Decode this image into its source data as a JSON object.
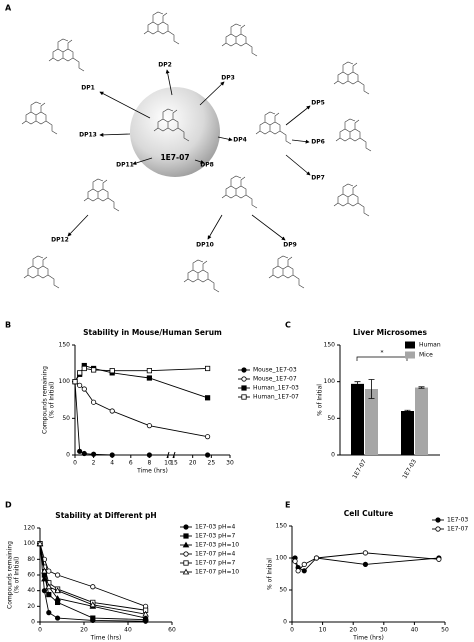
{
  "diagram": {
    "panel": "A",
    "center": "1E7-07",
    "nodes": [
      "DP1",
      "DP2",
      "DP3",
      "DP4",
      "DP5",
      "DP6",
      "DP7",
      "DP8",
      "DP9",
      "DP10",
      "DP11",
      "DP12",
      "DP13"
    ]
  },
  "chart_data": [
    {
      "type": "line",
      "panel": "B",
      "title": "Stability in Mouse/Human Serum",
      "xlabel": "Time (hrs)",
      "ylabel": [
        "Compounds remaining",
        "(% of Initial)"
      ],
      "x": [
        0,
        0.5,
        1,
        2,
        4,
        8,
        24
      ],
      "xlim": [
        0,
        30
      ],
      "xbreak": [
        10,
        15
      ],
      "xticks": [
        0,
        2,
        4,
        6,
        8,
        10,
        15,
        20,
        25,
        30
      ],
      "ylim": [
        0,
        150
      ],
      "yticks": [
        0,
        50,
        100,
        150
      ],
      "series": [
        {
          "name": "Mouse_1E7-03",
          "marker": "circle",
          "color": "#000000",
          "values": [
            100,
            5,
            2,
            1,
            0,
            0,
            0
          ]
        },
        {
          "name": "Mouse_1E7-07",
          "marker": "circle-open",
          "color": "#000000",
          "values": [
            100,
            95,
            90,
            72,
            60,
            40,
            25
          ]
        },
        {
          "name": "Human_1E7-03",
          "marker": "square",
          "color": "#000000",
          "values": [
            100,
            110,
            122,
            118,
            112,
            105,
            78
          ]
        },
        {
          "name": "Human_1E7-07",
          "marker": "square-open",
          "color": "#000000",
          "values": [
            100,
            112,
            118,
            116,
            115,
            115,
            118
          ]
        }
      ]
    },
    {
      "type": "bar",
      "panel": "C",
      "title": "Liver Microsomes",
      "ylabel": "% of Initial",
      "categories": [
        "1E7-07",
        "1E7-03"
      ],
      "ylim": [
        0,
        150
      ],
      "yticks": [
        0,
        50,
        100,
        150
      ],
      "annotation": "*",
      "series": [
        {
          "name": "Human",
          "color": "#000000",
          "values": [
            97,
            60
          ],
          "errors": [
            3,
            1
          ]
        },
        {
          "name": "Mice",
          "color": "#a6a6a6",
          "values": [
            90,
            92
          ],
          "errors": [
            13,
            1
          ]
        }
      ]
    },
    {
      "type": "line",
      "panel": "D",
      "title": "Stability at Different pH",
      "xlabel": "Time (hrs)",
      "ylabel": [
        "Compounds remaining",
        "(% of Initial)"
      ],
      "x": [
        0,
        2,
        4,
        8,
        24,
        48
      ],
      "xlim": [
        0,
        60
      ],
      "xticks": [
        0,
        20,
        40,
        60
      ],
      "ylim": [
        0,
        120
      ],
      "yticks": [
        0,
        20,
        40,
        60,
        80,
        100,
        120
      ],
      "series": [
        {
          "name": "1E7-03 pH=4",
          "marker": "circle",
          "color": "#000000",
          "values": [
            100,
            40,
            12,
            5,
            2,
            1
          ]
        },
        {
          "name": "1E7-03 pH=7",
          "marker": "square",
          "color": "#000000",
          "values": [
            100,
            60,
            35,
            25,
            5,
            3
          ]
        },
        {
          "name": "1E7-03 pH=10",
          "marker": "triangle",
          "color": "#000000",
          "values": [
            100,
            55,
            45,
            30,
            20,
            5
          ]
        },
        {
          "name": "1E7-07 pH=4",
          "marker": "circle-open",
          "color": "#000000",
          "values": [
            100,
            80,
            65,
            60,
            45,
            20
          ]
        },
        {
          "name": "1E7-07 pH=7",
          "marker": "square-open",
          "color": "#000000",
          "values": [
            100,
            70,
            50,
            42,
            25,
            15
          ]
        },
        {
          "name": "1E7-07 pH=10",
          "marker": "triangle-open",
          "color": "#000000",
          "values": [
            100,
            65,
            45,
            40,
            22,
            10
          ]
        }
      ]
    },
    {
      "type": "line",
      "panel": "E",
      "title": "Cell Culture",
      "xlabel": "Time (hrs)",
      "ylabel": "% of Initial",
      "x": [
        1,
        2,
        4,
        8,
        24,
        48
      ],
      "xlim": [
        0,
        50
      ],
      "xticks": [
        0,
        10,
        20,
        30,
        40,
        50
      ],
      "ylim": [
        0,
        150
      ],
      "yticks": [
        0,
        50,
        100,
        150
      ],
      "series": [
        {
          "name": "1E7-03",
          "marker": "circle",
          "color": "#000000",
          "values": [
            100,
            85,
            80,
            100,
            90,
            100
          ]
        },
        {
          "name": "1E7-07",
          "marker": "circle-open",
          "color": "#000000",
          "values": [
            95,
            80,
            90,
            100,
            108,
            98
          ]
        }
      ]
    }
  ]
}
